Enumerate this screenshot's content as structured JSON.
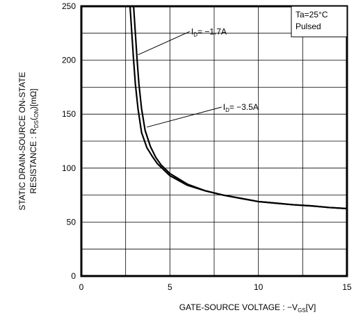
{
  "chart_data": {
    "type": "line",
    "title": "",
    "xlabel": "GATE-SOURCE VOLTAGE : −V",
    "xlabel_sub": "GS",
    "xlabel_unit": "[V]",
    "ylabel_line1": "STATIC DRAIN-SOURCE ON-STATE",
    "ylabel_line2_pre": "RESISTANCE : R",
    "ylabel_line2_sub": "DS",
    "ylabel_line2_mid": "(",
    "ylabel_line2_sub2": "ON",
    "ylabel_line2_post": ")[mΩ]",
    "xlim": [
      0,
      15
    ],
    "ylim": [
      0,
      250
    ],
    "xticks": [
      "0",
      "5",
      "10",
      "15"
    ],
    "yticks": [
      "0",
      "50",
      "100",
      "150",
      "200",
      "250"
    ],
    "x_minor_step": 2.5,
    "y_minor_step": 25,
    "grid": true,
    "legend": {
      "placement": "top-right",
      "lines": [
        "Ta=25°C",
        "Pulsed"
      ]
    },
    "series": [
      {
        "name": "I_D= −1.7A",
        "label_pre": "I",
        "label_sub": "D",
        "label_post": "= −1.7A",
        "x": [
          2.75,
          2.85,
          2.95,
          3.05,
          3.2,
          3.4,
          3.7,
          4.0,
          4.3,
          5.0,
          6.0,
          7.0,
          8.0,
          9.0,
          10.0,
          11.0,
          12.0,
          13.0,
          14.0,
          15.0
        ],
        "y": [
          250,
          225,
          200,
          178,
          155,
          133,
          119,
          111,
          104,
          93,
          84,
          79,
          75,
          72,
          69,
          67.5,
          66,
          65,
          63.5,
          62.5
        ]
      },
      {
        "name": "I_D= −3.5A",
        "label_pre": "I",
        "label_sub": "D",
        "label_post": "= −3.5A",
        "x": [
          2.95,
          3.05,
          3.15,
          3.25,
          3.4,
          3.6,
          3.9,
          4.2,
          4.5,
          5.0,
          6.0,
          7.0,
          8.0,
          9.0,
          10.0,
          11.0,
          12.0,
          13.0,
          14.0,
          15.0
        ],
        "y": [
          250,
          225,
          200,
          178,
          155,
          135,
          120,
          110,
          103,
          95,
          85,
          79,
          75,
          72,
          69,
          67.5,
          66,
          65,
          63.5,
          62.5
        ]
      }
    ]
  }
}
